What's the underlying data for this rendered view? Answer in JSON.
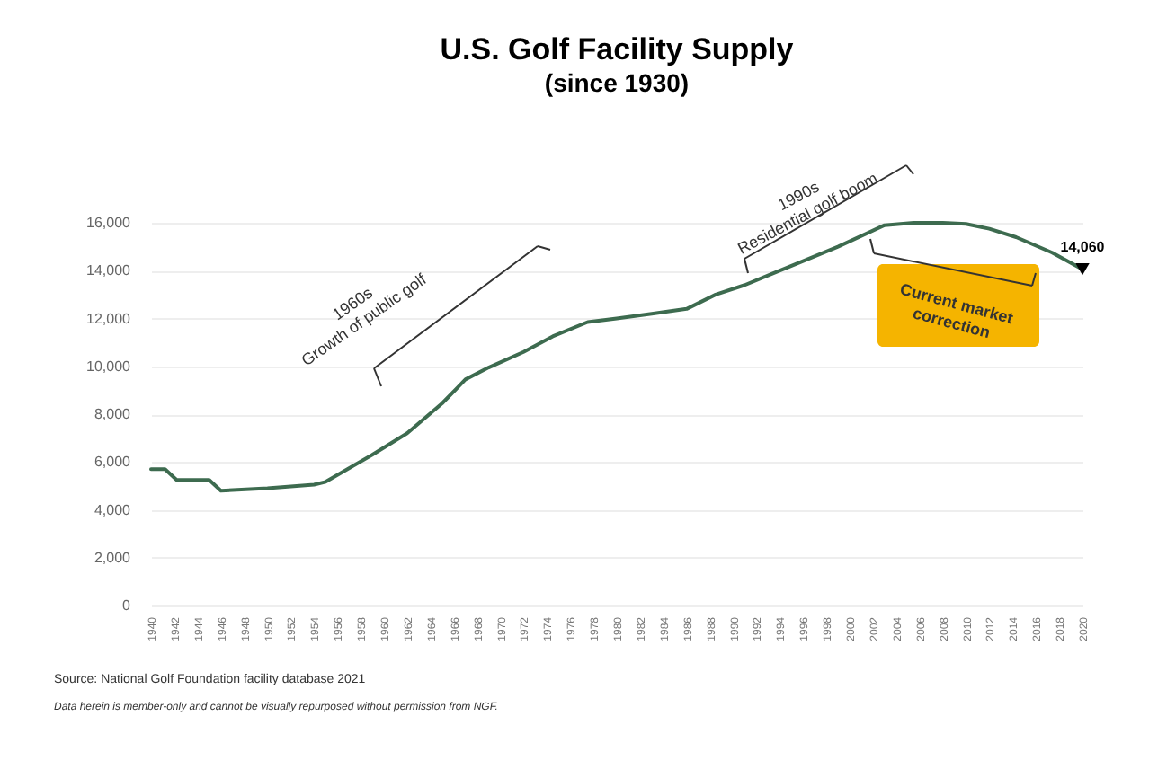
{
  "chart_data": {
    "type": "line",
    "title": "U.S. Golf Facility Supply",
    "subtitle": "(since 1930)",
    "x": [
      1940,
      1941.2,
      1942.2,
      1945,
      1946,
      1950,
      1954,
      1955,
      1959,
      1962,
      1965,
      1967,
      1969,
      1972,
      1974.5,
      1977.5,
      1980,
      1983,
      1986,
      1988.5,
      1991,
      1993.5,
      1996,
      1999,
      2003,
      2005.5,
      2008,
      2010,
      2012,
      2014.3,
      2017.4,
      2020
    ],
    "series": [
      {
        "color": "#3d6b4f",
        "values": [
          5700,
          5700,
          5250,
          5250,
          4800,
          4900,
          5050,
          5170,
          6300,
          7200,
          8450,
          9450,
          9950,
          10600,
          11250,
          11850,
          12000,
          12200,
          12400,
          13000,
          13400,
          13900,
          14400,
          15000,
          15900,
          16000,
          16000,
          15950,
          15750,
          15400,
          14750,
          14060
        ]
      }
    ],
    "xlim": [
      1940,
      2020
    ],
    "xticks": [
      1940,
      1942,
      1944,
      1946,
      1948,
      1950,
      1952,
      1954,
      1956,
      1958,
      1960,
      1962,
      1964,
      1966,
      1968,
      1970,
      1972,
      1974,
      1976,
      1978,
      1980,
      1982,
      1984,
      1986,
      1988,
      1990,
      1992,
      1994,
      1996,
      1998,
      2000,
      2002,
      2004,
      2006,
      2008,
      2010,
      2012,
      2014,
      2016,
      2018,
      2020
    ],
    "ylim": [
      0,
      16000
    ],
    "yticks": [
      0,
      {
        "value": 2000,
        "label": "2,000"
      },
      {
        "value": 4000,
        "label": "4,000"
      },
      {
        "value": 6000,
        "label": "6,000"
      },
      {
        "value": 8000,
        "label": "8,000"
      },
      {
        "value": 10000,
        "label": "10,000"
      },
      {
        "value": 12000,
        "label": "12,000"
      },
      {
        "value": 14000,
        "label": "14,000"
      },
      {
        "value": 16000,
        "label": "16,000"
      }
    ],
    "grid": "y",
    "legend": false,
    "marker": "none",
    "line_style": "solid",
    "annotations": [
      "1960s\nGrowth of public golf",
      "1990s\nResidential golf boom",
      "Current market\ncorrection",
      {
        "text": "14,060",
        "x": 2020,
        "y": 14060
      },
      "Source: National Golf Foundation facility database 2021",
      "Data herein is member-only and cannot be visually repurposed without permission from NGF."
    ]
  }
}
